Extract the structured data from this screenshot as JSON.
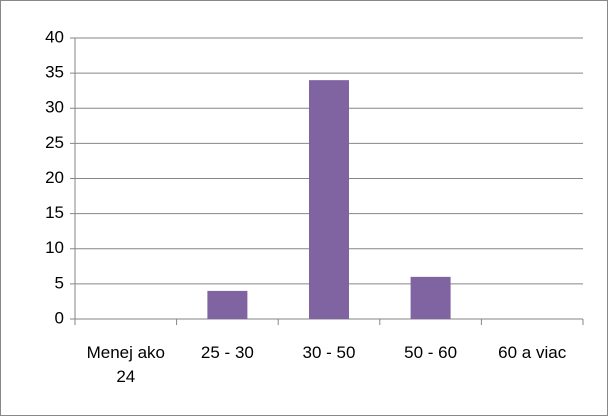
{
  "chart_data": {
    "type": "bar",
    "categories": [
      "Menej ako 24",
      "25 - 30",
      "30 - 50",
      "50 - 60",
      "60 a viac"
    ],
    "values": [
      0,
      4,
      34,
      6,
      0
    ],
    "color": "#8064a2",
    "ylim": [
      0,
      40
    ],
    "yticks": [
      0,
      5,
      10,
      15,
      20,
      25,
      30,
      35,
      40
    ],
    "grid": true
  }
}
